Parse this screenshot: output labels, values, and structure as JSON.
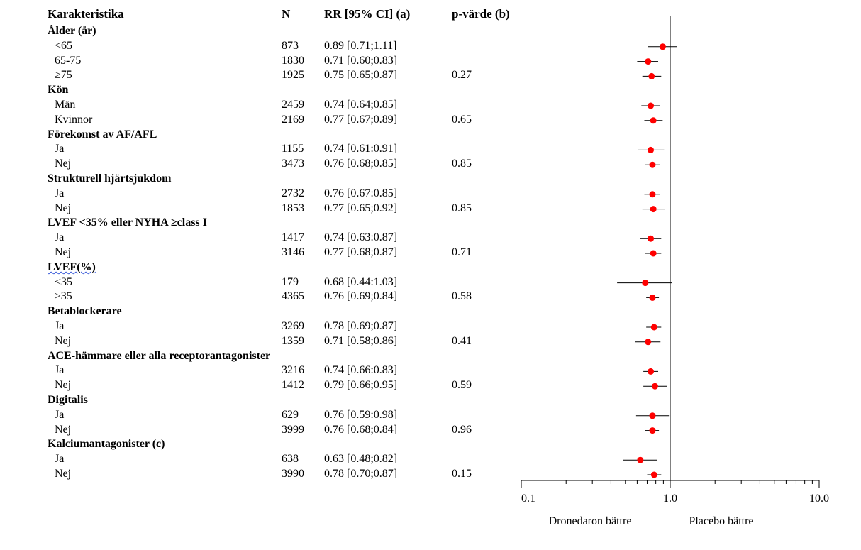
{
  "headers": {
    "characteristic": "Karakteristika",
    "n": "N",
    "rr": "RR [95% CI] (a)",
    "p": "p-värde (b)"
  },
  "rows": [
    {
      "kind": "group",
      "label": "Ålder (år)"
    },
    {
      "kind": "sub",
      "label": "<65",
      "n": "873",
      "rr": "0.89 [0.71;1.11]",
      "p": ""
    },
    {
      "kind": "sub",
      "label": "65-75",
      "n": "1830",
      "rr": "0.71 [0.60;0.83]",
      "p": ""
    },
    {
      "kind": "sub",
      "label": "≥75",
      "n": "1925",
      "rr": "0.75 [0.65;0.87]",
      "p": "0.27"
    },
    {
      "kind": "group",
      "label": "Kön"
    },
    {
      "kind": "sub",
      "label": "Män",
      "n": "2459",
      "rr": "0.74 [0.64;0.85]",
      "p": ""
    },
    {
      "kind": "sub",
      "label": "Kvinnor",
      "n": "2169",
      "rr": "0.77 [0.67;0.89]",
      "p": "0.65"
    },
    {
      "kind": "group",
      "label": "Förekomst av AF/AFL"
    },
    {
      "kind": "sub",
      "label": "Ja",
      "n": "1155",
      "rr": "0.74 [0.61:0.91]",
      "p": ""
    },
    {
      "kind": "sub",
      "label": "Nej",
      "n": "3473",
      "rr": "0.76 [0.68;0.85]",
      "p": "0.85"
    },
    {
      "kind": "group",
      "label": "Strukturell hjärtsjukdom"
    },
    {
      "kind": "sub",
      "label": "Ja",
      "n": "2732",
      "rr": "0.76 [0.67:0.85]",
      "p": ""
    },
    {
      "kind": "sub",
      "label": "Nej",
      "n": "1853",
      "rr": "0.77 [0.65;0.92]",
      "p": "0.85"
    },
    {
      "kind": "group",
      "label": "LVEF <35% eller NYHA ≥class I"
    },
    {
      "kind": "sub",
      "label": "Ja",
      "n": "1417",
      "rr": "0.74 [0.63:0.87]",
      "p": ""
    },
    {
      "kind": "sub",
      "label": "Nej",
      "n": "3146",
      "rr": "0.77 [0.68;0.87]",
      "p": "0.71"
    },
    {
      "kind": "group",
      "label": "LVEF(%)",
      "squiggle": true
    },
    {
      "kind": "sub",
      "label": "<35",
      "n": "179",
      "rr": "0.68 [0.44:1.03]",
      "p": ""
    },
    {
      "kind": "sub",
      "label": "≥35",
      "n": "4365",
      "rr": "0.76 [0.69;0.84]",
      "p": "0.58"
    },
    {
      "kind": "group",
      "label": "Betablockerare"
    },
    {
      "kind": "sub",
      "label": "Ja",
      "n": "3269",
      "rr": "0.78 [0.69;0.87]",
      "p": ""
    },
    {
      "kind": "sub",
      "label": "Nej",
      "n": "1359",
      "rr": "0.71 [0.58;0.86]",
      "p": "0.41"
    },
    {
      "kind": "group",
      "label": "ACE-hämmare eller alla receptorantagonister"
    },
    {
      "kind": "sub",
      "label": "Ja",
      "n": "3216",
      "rr": "0.74 [0.66:0.83]",
      "p": ""
    },
    {
      "kind": "sub",
      "label": "Nej",
      "n": "1412",
      "rr": "0.79 [0.66;0.95]",
      "p": "0.59"
    },
    {
      "kind": "group",
      "label": "Digitalis"
    },
    {
      "kind": "sub",
      "label": "Ja",
      "n": "629",
      "rr": "0.76 [0.59:0.98]",
      "p": ""
    },
    {
      "kind": "sub",
      "label": "Nej",
      "n": "3999",
      "rr": "0.76 [0.68;0.84]",
      "p": "0.96"
    },
    {
      "kind": "group",
      "label": "Kalciumantagonister (c)"
    },
    {
      "kind": "sub",
      "label": "Ja",
      "n": "638",
      "rr": "0.63 [0.48;0.82]",
      "p": ""
    },
    {
      "kind": "sub",
      "label": "Nej",
      "n": "3990",
      "rr": "0.78 [0.70;0.87]",
      "p": "0.15"
    }
  ],
  "chart_data": {
    "type": "forest",
    "scale": "log",
    "reference_line": 1.0,
    "xlim": [
      0.1,
      10.0
    ],
    "x_ticks": [
      "0.1",
      "1.0",
      "10.0"
    ],
    "x_tick_values": [
      0.1,
      1.0,
      10.0
    ],
    "left_label": "Dronedaron bättre",
    "right_label": "Placebo bättre",
    "marker_color": "#ff0000",
    "points": [
      {
        "est": 0.89,
        "lo": 0.71,
        "hi": 1.11
      },
      {
        "est": 0.71,
        "lo": 0.6,
        "hi": 0.83
      },
      {
        "est": 0.75,
        "lo": 0.65,
        "hi": 0.87
      },
      {
        "est": 0.74,
        "lo": 0.64,
        "hi": 0.85
      },
      {
        "est": 0.77,
        "lo": 0.67,
        "hi": 0.89
      },
      {
        "est": 0.74,
        "lo": 0.61,
        "hi": 0.91
      },
      {
        "est": 0.76,
        "lo": 0.68,
        "hi": 0.85
      },
      {
        "est": 0.76,
        "lo": 0.67,
        "hi": 0.85
      },
      {
        "est": 0.77,
        "lo": 0.65,
        "hi": 0.92
      },
      {
        "est": 0.74,
        "lo": 0.63,
        "hi": 0.87
      },
      {
        "est": 0.77,
        "lo": 0.68,
        "hi": 0.87
      },
      {
        "est": 0.68,
        "lo": 0.44,
        "hi": 1.03
      },
      {
        "est": 0.76,
        "lo": 0.69,
        "hi": 0.84
      },
      {
        "est": 0.78,
        "lo": 0.69,
        "hi": 0.87
      },
      {
        "est": 0.71,
        "lo": 0.58,
        "hi": 0.86
      },
      {
        "est": 0.74,
        "lo": 0.66,
        "hi": 0.83
      },
      {
        "est": 0.79,
        "lo": 0.66,
        "hi": 0.95
      },
      {
        "est": 0.76,
        "lo": 0.59,
        "hi": 0.98
      },
      {
        "est": 0.76,
        "lo": 0.68,
        "hi": 0.84
      },
      {
        "est": 0.63,
        "lo": 0.48,
        "hi": 0.82
      },
      {
        "est": 0.78,
        "lo": 0.7,
        "hi": 0.87
      }
    ]
  }
}
